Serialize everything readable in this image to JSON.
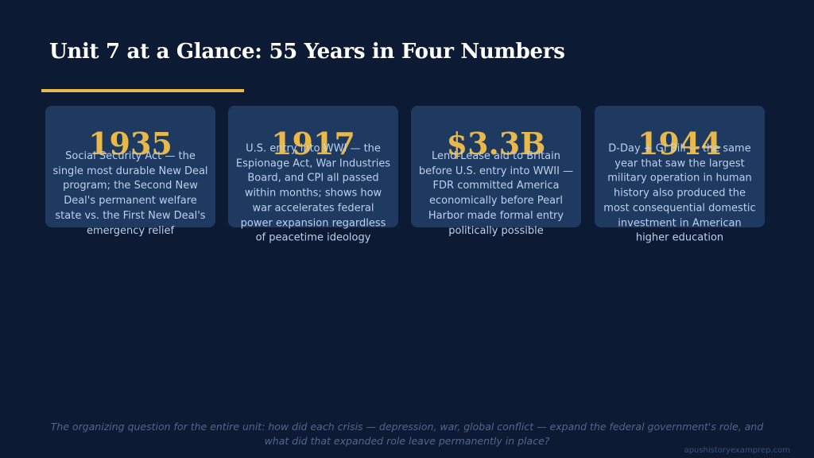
{
  "header": {
    "title": "Unit 7 at a Glance: 55 Years in Four Numbers"
  },
  "cards": [
    {
      "number": "1935",
      "text": "Social Security Act — the single most durable New Deal program; the Second New Deal's permanent welfare state vs. the First New Deal's emergency relief"
    },
    {
      "number": "1917",
      "text": "U.S. entry into WWI — the Espionage Act, War Industries Board, and CPI all passed within months; shows how war accelerates federal power expansion regardless of peacetime ideology"
    },
    {
      "number": "$3.3B",
      "text": "Lend-Lease aid to Britain before U.S. entry into WWII — FDR committed America economically before Pearl Harbor made formal entry politically possible"
    },
    {
      "number": "1944",
      "text": "D-Day + GI Bill — the same year that saw the largest military operation in human history also produced the most consequential domestic investment in American higher education"
    }
  ],
  "footer": {
    "question": "The organizing question for the entire unit: how did each crisis — depression, war, global conflict — expand the federal government's role, and what did that expanded role leave permanently in place?",
    "source": "apushistoryexamprep.com"
  }
}
